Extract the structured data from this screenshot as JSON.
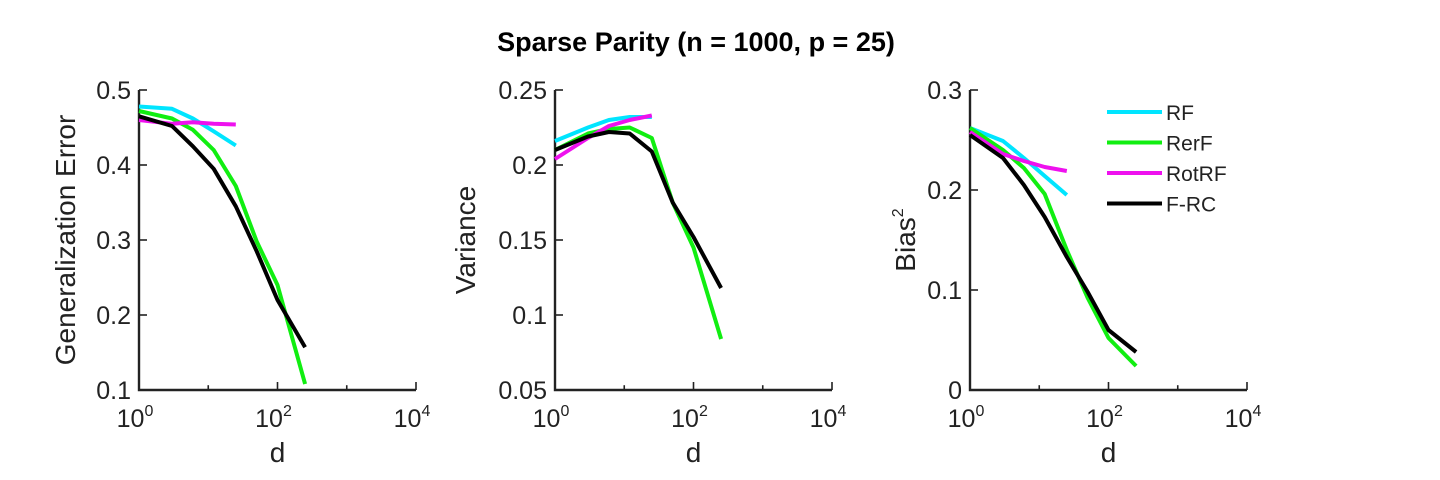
{
  "figure_title": "Sparse Parity (n = 1000, p = 25)",
  "colors": {
    "RF": "#00e5ff",
    "RerF": "#11ee11",
    "RotRF": "#ee11ee",
    "F-RC": "#000000"
  },
  "legend": [
    "RF",
    "RerF",
    "RotRF",
    "F-RC"
  ],
  "chart_data": [
    {
      "type": "line",
      "xlabel": "d",
      "ylabel": "Generalization Error",
      "xscale": "log",
      "xlim": [
        1,
        10000
      ],
      "ylim": [
        0.1,
        0.5
      ],
      "xticks": [
        {
          "base": "10",
          "exp": "0"
        },
        {
          "base": "10",
          "exp": "2"
        },
        {
          "base": "10",
          "exp": "4"
        }
      ],
      "yticks": [
        "0.1",
        "0.2",
        "0.3",
        "0.4",
        "0.5"
      ],
      "ytick_values": [
        0.1,
        0.2,
        0.3,
        0.4,
        0.5
      ],
      "grid": false,
      "series": [
        {
          "name": "RF",
          "x": [
            1,
            3,
            6,
            12,
            25
          ],
          "y": [
            0.478,
            0.475,
            0.462,
            0.445,
            0.426
          ]
        },
        {
          "name": "RerF",
          "x": [
            1,
            3,
            6,
            12,
            25,
            50,
            100,
            250
          ],
          "y": [
            0.472,
            0.462,
            0.447,
            0.42,
            0.372,
            0.298,
            0.24,
            0.108
          ]
        },
        {
          "name": "RotRF",
          "x": [
            1,
            3,
            6,
            12,
            25
          ],
          "y": [
            0.46,
            0.455,
            0.457,
            0.455,
            0.454
          ]
        },
        {
          "name": "F-RC",
          "x": [
            1,
            3,
            6,
            12,
            25,
            50,
            100,
            250
          ],
          "y": [
            0.465,
            0.452,
            0.425,
            0.395,
            0.345,
            0.285,
            0.22,
            0.157
          ]
        }
      ]
    },
    {
      "type": "line",
      "xlabel": "d",
      "ylabel": "Variance",
      "xscale": "log",
      "xlim": [
        1,
        10000
      ],
      "ylim": [
        0.05,
        0.25
      ],
      "xticks": [
        {
          "base": "10",
          "exp": "0"
        },
        {
          "base": "10",
          "exp": "2"
        },
        {
          "base": "10",
          "exp": "4"
        }
      ],
      "yticks": [
        "0.05",
        "0.1",
        "0.15",
        "0.2",
        "0.25"
      ],
      "ytick_values": [
        0.05,
        0.1,
        0.15,
        0.2,
        0.25
      ],
      "grid": false,
      "series": [
        {
          "name": "RF",
          "x": [
            1,
            3,
            6,
            12,
            25
          ],
          "y": [
            0.216,
            0.225,
            0.23,
            0.232,
            0.232
          ]
        },
        {
          "name": "RerF",
          "x": [
            1,
            3,
            6,
            12,
            25,
            50,
            100,
            250
          ],
          "y": [
            0.21,
            0.221,
            0.224,
            0.225,
            0.218,
            0.175,
            0.145,
            0.084
          ]
        },
        {
          "name": "RotRF",
          "x": [
            1,
            3,
            6,
            12,
            25
          ],
          "y": [
            0.204,
            0.218,
            0.226,
            0.23,
            0.233
          ]
        },
        {
          "name": "F-RC",
          "x": [
            1,
            3,
            6,
            12,
            25,
            50,
            100,
            250
          ],
          "y": [
            0.21,
            0.219,
            0.222,
            0.221,
            0.209,
            0.175,
            0.152,
            0.118
          ]
        }
      ]
    },
    {
      "type": "line",
      "xlabel": "d",
      "ylabel": "Bias",
      "ylabel_sup": "2",
      "xscale": "log",
      "xlim": [
        1,
        10000
      ],
      "ylim": [
        0,
        0.3
      ],
      "xticks": [
        {
          "base": "10",
          "exp": "0"
        },
        {
          "base": "10",
          "exp": "2"
        },
        {
          "base": "10",
          "exp": "4"
        }
      ],
      "yticks": [
        "0",
        "0.1",
        "0.2",
        "0.3"
      ],
      "ytick_values": [
        0,
        0.1,
        0.2,
        0.3
      ],
      "grid": false,
      "legend_position": "top-right",
      "series": [
        {
          "name": "RF",
          "x": [
            1,
            3,
            6,
            12,
            25
          ],
          "y": [
            0.262,
            0.249,
            0.232,
            0.214,
            0.195
          ]
        },
        {
          "name": "RerF",
          "x": [
            1,
            3,
            6,
            12,
            25,
            50,
            100,
            250
          ],
          "y": [
            0.262,
            0.24,
            0.222,
            0.196,
            0.14,
            0.092,
            0.052,
            0.024
          ]
        },
        {
          "name": "RotRF",
          "x": [
            1,
            3,
            6,
            12,
            25
          ],
          "y": [
            0.258,
            0.236,
            0.229,
            0.223,
            0.219
          ]
        },
        {
          "name": "F-RC",
          "x": [
            1,
            3,
            6,
            12,
            25,
            50,
            100,
            250
          ],
          "y": [
            0.255,
            0.232,
            0.205,
            0.173,
            0.133,
            0.098,
            0.06,
            0.038
          ]
        }
      ]
    }
  ]
}
